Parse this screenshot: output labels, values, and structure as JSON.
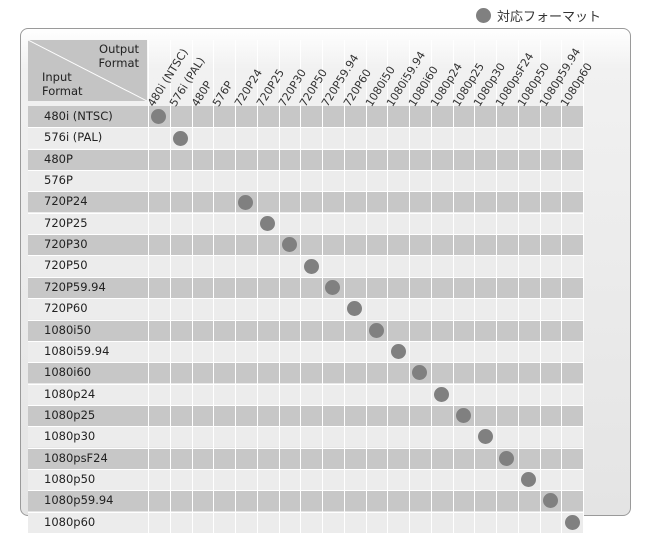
{
  "legend": {
    "label": "対応フォーマット",
    "color": "#808080"
  },
  "header": {
    "output_line1": "Output",
    "output_line2": "Format",
    "input_line1": "Input",
    "input_line2": "Format"
  },
  "output_formats": [
    "480i (NTSC)",
    "576i (PAL)",
    "480P",
    "576P",
    "720P24",
    "720P25",
    "720P30",
    "720P50",
    "720P59.94",
    "720P60",
    "1080i50",
    "1080i59.94",
    "1080i60",
    "1080p24",
    "1080p25",
    "1080p30",
    "1080psF24",
    "1080p50",
    "1080p59.94",
    "1080p60"
  ],
  "input_formats": [
    "480i (NTSC)",
    "576i (PAL)",
    "480P",
    "576P",
    "720P24",
    "720P25",
    "720P30",
    "720P50",
    "720P59.94",
    "720P60",
    "1080i50",
    "1080i59.94",
    "1080i60",
    "1080p24",
    "1080p25",
    "1080p30",
    "1080psF24",
    "1080p50",
    "1080p59.94",
    "1080p60"
  ],
  "supported": [
    {
      "input": "480i (NTSC)",
      "output": "480i (NTSC)"
    },
    {
      "input": "576i (PAL)",
      "output": "576i (PAL)"
    },
    {
      "input": "720P24",
      "output": "720P24"
    },
    {
      "input": "720P25",
      "output": "720P25"
    },
    {
      "input": "720P30",
      "output": "720P30"
    },
    {
      "input": "720P50",
      "output": "720P50"
    },
    {
      "input": "720P59.94",
      "output": "720P59.94"
    },
    {
      "input": "720P60",
      "output": "720P60"
    },
    {
      "input": "1080i50",
      "output": "1080i50"
    },
    {
      "input": "1080i59.94",
      "output": "1080i59.94"
    },
    {
      "input": "1080i60",
      "output": "1080i60"
    },
    {
      "input": "1080p24",
      "output": "1080p24"
    },
    {
      "input": "1080p25",
      "output": "1080p25"
    },
    {
      "input": "1080p30",
      "output": "1080p30"
    },
    {
      "input": "1080psF24",
      "output": "1080psF24"
    },
    {
      "input": "1080p50",
      "output": "1080p50"
    },
    {
      "input": "1080p59.94",
      "output": "1080p59.94"
    },
    {
      "input": "1080p60",
      "output": "1080p60"
    }
  ]
}
